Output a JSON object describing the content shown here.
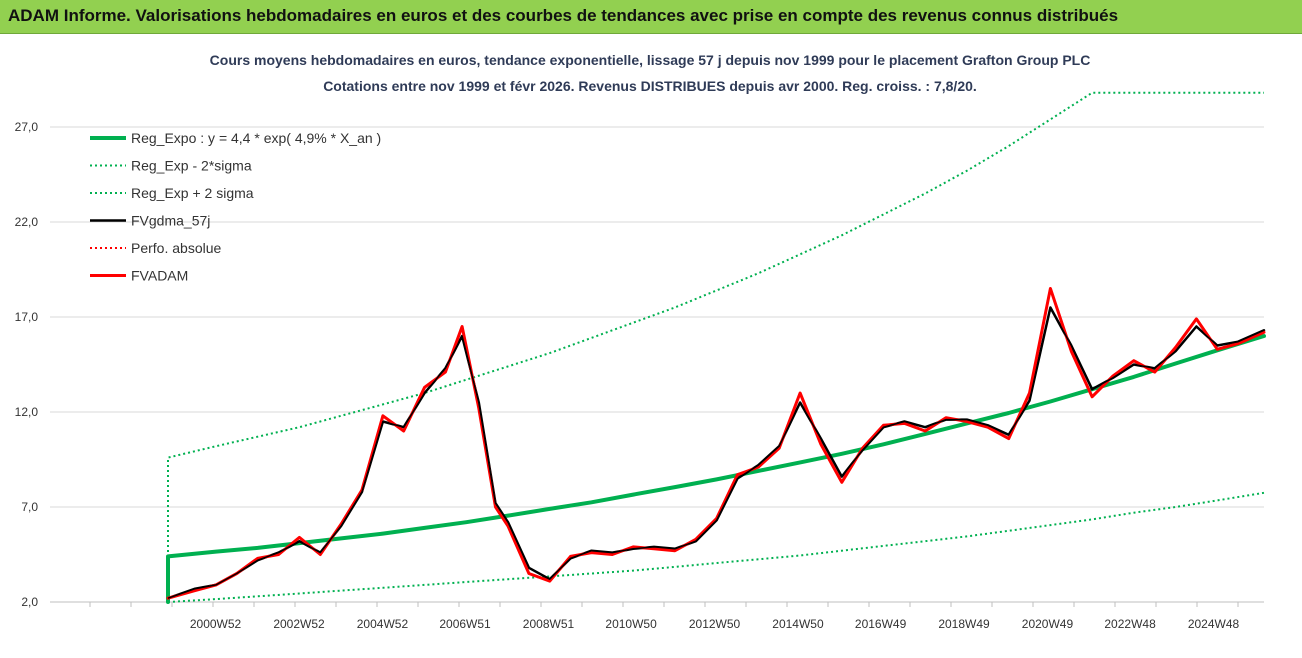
{
  "banner": {
    "title": "ADAM Informe. Valorisations hebdomadaires en euros et des courbes de tendances avec prise en compte des revenus connus distribués"
  },
  "chart_data": {
    "type": "line",
    "title": "Cours moyens hebdomadaires en euros, tendance exponentielle, lissage 57 j depuis nov 1999 pour le placement Grafton Group PLC",
    "subtitle": "Cotations entre nov 1999 et févr 2026. Revenus DISTRIBUES depuis avr 2000. Reg. croiss. : 7,8/20.",
    "xlabel": "",
    "ylabel": "",
    "xlim": [
      1999.85,
      2026.12
    ],
    "ylim": [
      2.0,
      29.0
    ],
    "y_ticks": [
      {
        "value": 2.0,
        "label": "2,0"
      },
      {
        "value": 7.0,
        "label": "7,0"
      },
      {
        "value": 12.0,
        "label": "12,0"
      },
      {
        "value": 17.0,
        "label": "17,0"
      },
      {
        "value": 22.0,
        "label": "22,0"
      },
      {
        "value": 27.0,
        "label": "27,0"
      }
    ],
    "x_ticks": [
      {
        "value": 2000.99,
        "label": "2000W52"
      },
      {
        "value": 2002.99,
        "label": "2002W52"
      },
      {
        "value": 2004.99,
        "label": "2004W52"
      },
      {
        "value": 2006.97,
        "label": "2006W51"
      },
      {
        "value": 2008.97,
        "label": "2008W51"
      },
      {
        "value": 2010.95,
        "label": "2010W50"
      },
      {
        "value": 2012.95,
        "label": "2012W50"
      },
      {
        "value": 2014.95,
        "label": "2014W50"
      },
      {
        "value": 2016.93,
        "label": "2016W49"
      },
      {
        "value": 2018.93,
        "label": "2018W49"
      },
      {
        "value": 2020.93,
        "label": "2020W49"
      },
      {
        "value": 2022.91,
        "label": "2022W48"
      },
      {
        "value": 2024.91,
        "label": "2024W48"
      }
    ],
    "gridlines": "horizontal",
    "legend_position": "top-left",
    "series": [
      {
        "name": "Reg_Expo : y = 4,4 * exp( 4,9% *  X_an )",
        "color": "#00b050",
        "style": "solid",
        "width": 4,
        "x": [
          1999.85,
          1999.85,
          2001,
          2002,
          2003,
          2004,
          2005,
          2006,
          2007,
          2008,
          2009,
          2010,
          2011,
          2012,
          2013,
          2014,
          2015,
          2016,
          2017,
          2018,
          2019,
          2020,
          2021,
          2022,
          2023,
          2024,
          2025,
          2026.12
        ],
        "y": [
          2.0,
          4.4,
          4.65,
          4.85,
          5.1,
          5.35,
          5.6,
          5.9,
          6.2,
          6.55,
          6.9,
          7.25,
          7.65,
          8.05,
          8.45,
          8.9,
          9.35,
          9.8,
          10.3,
          10.85,
          11.4,
          11.95,
          12.55,
          13.2,
          13.85,
          14.55,
          15.25,
          16.0
        ]
      },
      {
        "name": "Reg_Exp - 2*sigma",
        "color": "#00b050",
        "style": "dotted",
        "width": 2,
        "x": [
          1999.85,
          2001,
          2002,
          2003,
          2004,
          2005,
          2006,
          2007,
          2008,
          2009,
          2010,
          2011,
          2012,
          2013,
          2014,
          2015,
          2016,
          2017,
          2018,
          2019,
          2020,
          2021,
          2022,
          2023,
          2024,
          2025,
          2026.12
        ],
        "y": [
          2.0,
          2.15,
          2.3,
          2.45,
          2.6,
          2.75,
          2.9,
          3.05,
          3.2,
          3.35,
          3.5,
          3.65,
          3.85,
          4.05,
          4.25,
          4.45,
          4.7,
          4.95,
          5.2,
          5.45,
          5.75,
          6.05,
          6.35,
          6.7,
          7.0,
          7.35,
          7.75
        ]
      },
      {
        "name": "Reg_Exp + 2 sigma",
        "color": "#00b050",
        "style": "dotted",
        "width": 2,
        "x": [
          1999.85,
          1999.85,
          2001,
          2002,
          2003,
          2004,
          2005,
          2006,
          2007,
          2008,
          2009,
          2010,
          2011,
          2012,
          2013,
          2014,
          2015,
          2016,
          2017,
          2018,
          2019,
          2020,
          2021,
          2022,
          2023,
          2024,
          2025,
          2026.12
        ],
        "y": [
          2.0,
          9.6,
          10.2,
          10.7,
          11.2,
          11.8,
          12.4,
          13.0,
          13.7,
          14.4,
          15.1,
          15.9,
          16.7,
          17.5,
          18.4,
          19.3,
          20.3,
          21.3,
          22.4,
          23.5,
          24.7,
          26.0,
          27.4,
          28.8,
          28.8,
          28.8,
          28.8,
          28.8
        ]
      },
      {
        "name": "FVgdma_57j",
        "color": "#000000",
        "style": "solid",
        "width": 2.5,
        "x": [
          1999.85,
          2000.5,
          2001.0,
          2001.5,
          2002.0,
          2002.5,
          2003.0,
          2003.5,
          2004.0,
          2004.5,
          2005.0,
          2005.5,
          2006.0,
          2006.5,
          2006.9,
          2007.3,
          2007.7,
          2008.0,
          2008.5,
          2009.0,
          2009.5,
          2010.0,
          2010.5,
          2011.0,
          2011.5,
          2012.0,
          2012.5,
          2013.0,
          2013.5,
          2014.0,
          2014.5,
          2015.0,
          2015.5,
          2016.0,
          2016.5,
          2017.0,
          2017.5,
          2018.0,
          2018.5,
          2019.0,
          2019.5,
          2020.0,
          2020.5,
          2021.0,
          2021.5,
          2022.0,
          2022.5,
          2023.0,
          2023.5,
          2024.0,
          2024.5,
          2025.0,
          2025.5,
          2026.12
        ],
        "y": [
          2.2,
          2.7,
          2.9,
          3.5,
          4.2,
          4.6,
          5.2,
          4.6,
          6.0,
          7.8,
          11.5,
          11.2,
          13.0,
          14.3,
          16.0,
          12.5,
          7.2,
          6.2,
          3.8,
          3.2,
          4.3,
          4.7,
          4.6,
          4.8,
          4.9,
          4.8,
          5.2,
          6.3,
          8.5,
          9.2,
          10.2,
          12.5,
          10.6,
          8.6,
          10.0,
          11.2,
          11.5,
          11.2,
          11.6,
          11.6,
          11.3,
          10.8,
          12.6,
          17.5,
          15.5,
          13.2,
          13.8,
          14.5,
          14.3,
          15.2,
          16.5,
          15.5,
          15.7,
          16.3
        ]
      },
      {
        "name": "Perfo. absolue",
        "color": "#ff0000",
        "style": "dotted",
        "width": 1.5,
        "x": [
          1999.85,
          2000.5,
          2001.0,
          2001.5,
          2002.0,
          2002.5,
          2003.0,
          2003.5,
          2004.0,
          2004.5,
          2005.0,
          2005.5,
          2006.0,
          2006.5,
          2006.9,
          2007.3,
          2007.7,
          2008.0,
          2008.5,
          2009.0,
          2009.5,
          2010.0,
          2010.5,
          2011.0,
          2011.5,
          2012.0,
          2012.5,
          2013.0,
          2013.5,
          2014.0,
          2014.5,
          2015.0,
          2015.5,
          2016.0,
          2016.5,
          2017.0,
          2017.5,
          2018.0,
          2018.5,
          2019.0,
          2019.5,
          2020.0,
          2020.5,
          2021.0,
          2021.5,
          2022.0,
          2022.5,
          2023.0,
          2023.5,
          2024.0,
          2024.5,
          2025.0,
          2025.5,
          2026.12
        ],
        "y": [
          2.2,
          2.6,
          2.9,
          3.5,
          4.3,
          4.5,
          5.4,
          4.5,
          6.1,
          7.9,
          11.8,
          11.0,
          13.3,
          14.1,
          16.5,
          12.2,
          7.0,
          6.0,
          3.5,
          3.1,
          4.4,
          4.6,
          4.5,
          4.9,
          4.8,
          4.7,
          5.3,
          6.4,
          8.7,
          9.1,
          10.1,
          13.0,
          10.3,
          8.3,
          10.1,
          11.3,
          11.4,
          11.0,
          11.7,
          11.5,
          11.2,
          10.6,
          13.0,
          18.5,
          15.2,
          12.8,
          13.9,
          14.7,
          14.1,
          15.4,
          16.9,
          15.3,
          15.6,
          16.2
        ]
      },
      {
        "name": "FVADAM",
        "color": "#ff0000",
        "style": "solid",
        "width": 3,
        "x": [
          1999.85,
          2000.5,
          2001.0,
          2001.5,
          2002.0,
          2002.5,
          2003.0,
          2003.5,
          2004.0,
          2004.5,
          2005.0,
          2005.5,
          2006.0,
          2006.5,
          2006.9,
          2007.3,
          2007.7,
          2008.0,
          2008.5,
          2009.0,
          2009.5,
          2010.0,
          2010.5,
          2011.0,
          2011.5,
          2012.0,
          2012.5,
          2013.0,
          2013.5,
          2014.0,
          2014.5,
          2015.0,
          2015.5,
          2016.0,
          2016.5,
          2017.0,
          2017.5,
          2018.0,
          2018.5,
          2019.0,
          2019.5,
          2020.0,
          2020.5,
          2021.0,
          2021.5,
          2022.0,
          2022.5,
          2023.0,
          2023.5,
          2024.0,
          2024.5,
          2025.0,
          2025.5,
          2026.12
        ],
        "y": [
          2.2,
          2.6,
          2.9,
          3.5,
          4.3,
          4.5,
          5.4,
          4.5,
          6.1,
          7.9,
          11.8,
          11.0,
          13.3,
          14.1,
          16.5,
          12.2,
          7.0,
          6.0,
          3.5,
          3.1,
          4.4,
          4.6,
          4.5,
          4.9,
          4.8,
          4.7,
          5.3,
          6.4,
          8.7,
          9.1,
          10.1,
          13.0,
          10.3,
          8.3,
          10.1,
          11.3,
          11.4,
          11.0,
          11.7,
          11.5,
          11.2,
          10.6,
          13.0,
          18.5,
          15.2,
          12.8,
          13.9,
          14.7,
          14.1,
          15.4,
          16.9,
          15.3,
          15.6,
          16.2
        ]
      }
    ]
  }
}
